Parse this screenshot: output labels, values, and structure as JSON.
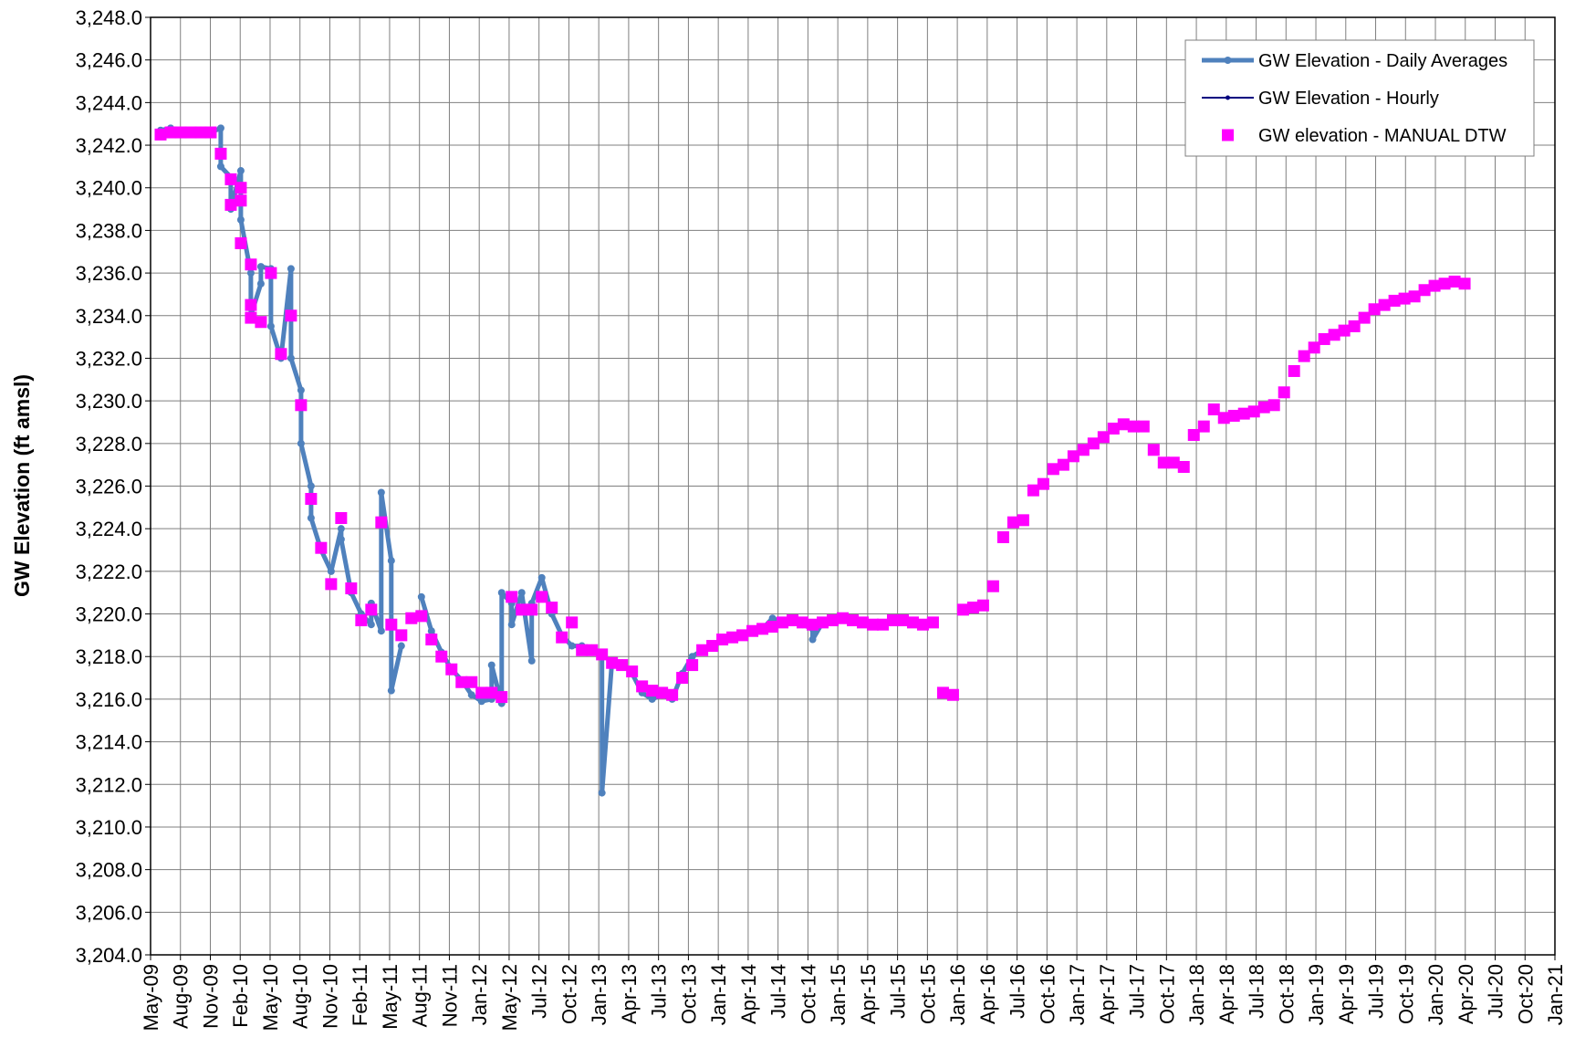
{
  "chart_data": {
    "type": "line",
    "ylabel": "GW Elevation (ft amsl)",
    "ylim": [
      3204,
      3248
    ],
    "yticks": [
      {
        "value": 3204,
        "label": "3,204.0"
      },
      {
        "value": 3206,
        "label": "3,206.0"
      },
      {
        "value": 3208,
        "label": "3,208.0"
      },
      {
        "value": 3210,
        "label": "3,210.0"
      },
      {
        "value": 3212,
        "label": "3,212.0"
      },
      {
        "value": 3214,
        "label": "3,214.0"
      },
      {
        "value": 3216,
        "label": "3,216.0"
      },
      {
        "value": 3218,
        "label": "3,218.0"
      },
      {
        "value": 3220,
        "label": "3,220.0"
      },
      {
        "value": 3222,
        "label": "3,222.0"
      },
      {
        "value": 3224,
        "label": "3,224.0"
      },
      {
        "value": 3226,
        "label": "3,226.0"
      },
      {
        "value": 3228,
        "label": "3,228.0"
      },
      {
        "value": 3230,
        "label": "3,230.0"
      },
      {
        "value": 3232,
        "label": "3,232.0"
      },
      {
        "value": 3234,
        "label": "3,234.0"
      },
      {
        "value": 3236,
        "label": "3,236.0"
      },
      {
        "value": 3238,
        "label": "3,238.0"
      },
      {
        "value": 3240,
        "label": "3,240.0"
      },
      {
        "value": 3242,
        "label": "3,242.0"
      },
      {
        "value": 3244,
        "label": "3,244.0"
      },
      {
        "value": 3246,
        "label": "3,246.0"
      },
      {
        "value": 3248,
        "label": "3,248.0"
      }
    ],
    "xlim": [
      "May-09",
      "Jan-21"
    ],
    "xticks": [
      "May-09",
      "Aug-09",
      "Nov-09",
      "Feb-10",
      "May-10",
      "Aug-10",
      "Nov-10",
      "Feb-11",
      "May-11",
      "Aug-11",
      "Nov-11",
      "Jan-12",
      "May-12",
      "Jul-12",
      "Oct-12",
      "Jan-13",
      "Apr-13",
      "Jul-13",
      "Oct-13",
      "Jan-14",
      "Apr-14",
      "Jul-14",
      "Oct-14",
      "Jan-15",
      "Apr-15",
      "Jul-15",
      "Oct-15",
      "Jan-16",
      "Apr-16",
      "Jul-16",
      "Oct-16",
      "Jan-17",
      "Apr-17",
      "Jul-17",
      "Oct-17",
      "Jan-18",
      "Apr-18",
      "Jul-18",
      "Oct-18",
      "Jan-19",
      "Apr-19",
      "Jul-19",
      "Oct-19",
      "Jan-20",
      "Apr-20",
      "Jul-20",
      "Oct-20",
      "Jan-21"
    ],
    "grid": true,
    "legend": "upper right",
    "series": [
      {
        "name": "GW Elevation - Daily Averages",
        "color": "#4f81bd",
        "style": "line",
        "x": [
          "Jun-09",
          "Jul-09",
          "Aug-09",
          "Sep-09",
          "Oct-09",
          "Nov-09",
          "Dec-09",
          "Dec-09",
          "Jan-10",
          "Jan-10",
          "Feb-10",
          "Feb-10",
          "Mar-10",
          "Mar-10",
          "Apr-10",
          "Apr-10",
          "May-10",
          "May-10",
          "Jun-10",
          "Jul-10",
          "Jul-10",
          "Aug-10",
          "Aug-10",
          "Sep-10",
          "Sep-10",
          "Oct-10",
          "Nov-10",
          "Dec-10",
          "Dec-10",
          "Jan-11",
          "Feb-11",
          "Mar-11",
          "Mar-11",
          "Apr-11",
          "Apr-11",
          "May-11",
          "May-11",
          "Jun-11",
          "Jul-11",
          "Aug-11",
          "Sep-11",
          "Oct-11",
          "Nov-11",
          "Dec-11",
          "Jan-12",
          "Feb-12",
          "Mar-12",
          "Mar-12",
          "Apr-12",
          "Apr-12",
          "May-12",
          "May-12",
          "Jun-12",
          "Jul-12",
          "Jul-12",
          "Aug-12",
          "Sep-12",
          "Oct-12",
          "Nov-12",
          "Dec-12",
          "Jan-13",
          "Feb-13",
          "Feb-13",
          "Mar-13",
          "Apr-13",
          "May-13",
          "Jun-13",
          "Jul-13",
          "Aug-13",
          "Sep-13",
          "Oct-13",
          "Nov-13",
          "Dec-13",
          "Jan-14",
          "Feb-14",
          "Mar-14",
          "Apr-14",
          "May-14",
          "Jun-14",
          "Jul-14",
          "Aug-14",
          "Sep-14",
          "Oct-14",
          "Nov-14",
          "Nov-14",
          "Dec-14",
          "Jan-15",
          "Feb-15"
        ],
        "values": [
          3242.7,
          3242.8,
          3242.6,
          3242.6,
          3242.7,
          3242.6,
          3242.8,
          3241.0,
          3240.5,
          3239.0,
          3240.8,
          3238.5,
          3236.0,
          3234.0,
          3235.5,
          3236.3,
          3236.2,
          3233.5,
          3232.0,
          3236.2,
          3232.0,
          3230.5,
          3228.0,
          3226.0,
          3224.5,
          3223.0,
          3222.0,
          3224.0,
          3223.5,
          3221.0,
          3220.0,
          3219.5,
          3220.5,
          3219.2,
          3225.7,
          3222.5,
          3216.4,
          3218.5,
          null,
          3220.8,
          3219.2,
          3218.2,
          3217.4,
          3216.9,
          3216.2,
          3215.9,
          3216.0,
          3217.6,
          3215.8,
          3221.0,
          3220.5,
          3219.5,
          3221.0,
          3217.8,
          3220.5,
          3221.7,
          3220.0,
          3219.0,
          3218.5,
          3218.5,
          3218.4,
          3218.0,
          3211.6,
          3217.8,
          3217.7,
          3217.2,
          3216.3,
          3216.0,
          3216.2,
          3216.0,
          3217.2,
          3218.0,
          3218.3,
          3218.5,
          3218.7,
          3218.9,
          3219.0,
          3219.1,
          3219.3,
          3219.8,
          3219.6,
          3219.7,
          3219.5,
          3219.3,
          3218.8,
          3219.6,
          3219.6,
          3219.7
        ]
      },
      {
        "name": "GW Elevation - Hourly",
        "color": "#000080",
        "style": "line",
        "x": [],
        "values": []
      },
      {
        "name": "GW elevation - MANUAL DTW",
        "color": "#ff00ff",
        "style": "marker",
        "x": [
          "Jun-09",
          "Jul-09",
          "Aug-09",
          "Sep-09",
          "Oct-09",
          "Nov-09",
          "Dec-09",
          "Jan-10",
          "Jan-10",
          "Feb-10",
          "Feb-10",
          "Feb-10",
          "Mar-10",
          "Mar-10",
          "Mar-10",
          "Apr-10",
          "May-10",
          "Jun-10",
          "Jul-10",
          "Aug-10",
          "Sep-10",
          "Oct-10",
          "Nov-10",
          "Dec-10",
          "Jan-11",
          "Feb-11",
          "Mar-11",
          "Apr-11",
          "May-11",
          "Jun-11",
          "Jul-11",
          "Aug-11",
          "Sep-11",
          "Oct-11",
          "Nov-11",
          "Dec-11",
          "Jan-12",
          "Feb-12",
          "Mar-12",
          "Apr-12",
          "May-12",
          "Jun-12",
          "Jul-12",
          "Aug-12",
          "Sep-12",
          "Oct-12",
          "Nov-12",
          "Dec-12",
          "Jan-13",
          "Feb-13",
          "Mar-13",
          "Apr-13",
          "May-13",
          "Jun-13",
          "Jul-13",
          "Aug-13",
          "Sep-13",
          "Oct-13",
          "Nov-13",
          "Dec-13",
          "Jan-14",
          "Feb-14",
          "Mar-14",
          "Apr-14",
          "May-14",
          "Jun-14",
          "Jul-14",
          "Aug-14",
          "Sep-14",
          "Oct-14",
          "Nov-14",
          "Dec-14",
          "Jan-15",
          "Feb-15",
          "Mar-15",
          "Apr-15",
          "May-15",
          "Jun-15",
          "Jul-15",
          "Aug-15",
          "Sep-15",
          "Oct-15",
          "Nov-15",
          "Dec-15",
          "Jan-16",
          "Feb-16",
          "Mar-16",
          "Apr-16",
          "May-16",
          "Jun-16",
          "Jul-16",
          "Aug-16",
          "Sep-16",
          "Oct-16",
          "Nov-16",
          "Dec-16",
          "Jan-17",
          "Feb-17",
          "Mar-17",
          "Apr-17",
          "May-17",
          "Jun-17",
          "Jul-17",
          "Aug-17",
          "Sep-17",
          "Oct-17",
          "Nov-17",
          "Dec-17",
          "Jan-18",
          "Feb-18",
          "Mar-18",
          "Apr-18",
          "May-18",
          "Jun-18",
          "Jul-18",
          "Aug-18",
          "Sep-18",
          "Oct-18",
          "Nov-18",
          "Dec-18",
          "Jan-19",
          "Feb-19",
          "Mar-19",
          "Apr-19",
          "May-19",
          "Jun-19",
          "Jul-19",
          "Aug-19",
          "Sep-19",
          "Oct-19",
          "Nov-19",
          "Dec-19",
          "Jan-20",
          "Feb-20",
          "Mar-20",
          "Apr-20"
        ],
        "values": [
          3242.5,
          3242.6,
          3242.6,
          3242.6,
          3242.6,
          3242.6,
          3241.6,
          3240.4,
          3239.2,
          3240.0,
          3239.4,
          3237.4,
          3236.4,
          3234.5,
          3233.9,
          3233.7,
          3236.0,
          3232.2,
          3234.0,
          3229.8,
          3225.4,
          3223.1,
          3221.4,
          3224.5,
          3221.2,
          3219.7,
          3220.2,
          3224.3,
          3219.5,
          3219.0,
          3219.8,
          3219.9,
          3218.8,
          3218.0,
          3217.4,
          3216.8,
          3216.8,
          3216.3,
          3216.3,
          3216.1,
          3220.8,
          3220.2,
          3220.2,
          3220.8,
          3220.3,
          3218.9,
          3219.6,
          3218.3,
          3218.3,
          3218.1,
          3217.7,
          3217.6,
          3217.3,
          3216.6,
          3216.4,
          3216.3,
          3216.2,
          3217.0,
          3217.6,
          3218.3,
          3218.5,
          3218.8,
          3218.9,
          3219.0,
          3219.2,
          3219.3,
          3219.4,
          3219.6,
          3219.7,
          3219.6,
          3219.5,
          3219.6,
          3219.7,
          3219.8,
          3219.7,
          3219.6,
          3219.5,
          3219.5,
          3219.7,
          3219.7,
          3219.6,
          3219.5,
          3219.6,
          3216.3,
          3216.2,
          3220.2,
          3220.3,
          3220.4,
          3221.3,
          3223.6,
          3224.3,
          3224.4,
          3225.8,
          3226.1,
          3226.8,
          3227.0,
          3227.4,
          3227.7,
          3228.0,
          3228.3,
          3228.7,
          3228.9,
          3228.8,
          3228.8,
          3227.7,
          3227.1,
          3227.1,
          3226.9,
          3228.4,
          3228.8,
          3229.6,
          3229.2,
          3229.3,
          3229.4,
          3229.5,
          3229.7,
          3229.8,
          3230.4,
          3231.4,
          3232.1,
          3232.5,
          3232.9,
          3233.1,
          3233.3,
          3233.5,
          3233.9,
          3234.3,
          3234.5,
          3234.7,
          3234.8,
          3234.9,
          3235.2,
          3235.4,
          3235.5,
          3235.6,
          3235.5
        ]
      }
    ]
  }
}
